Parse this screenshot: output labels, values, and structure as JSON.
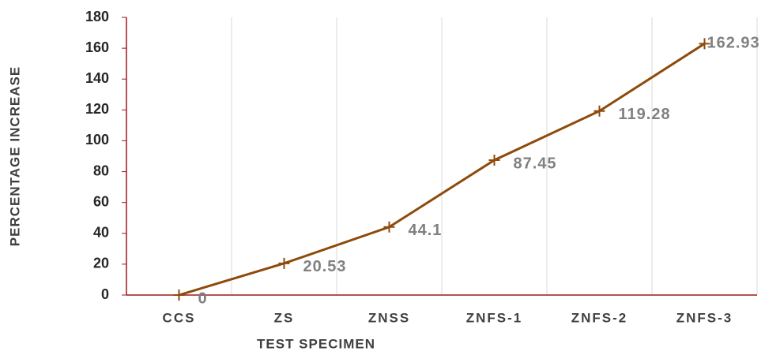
{
  "chart_data": {
    "type": "line",
    "x_label": "TEST SPECIMEN",
    "y_label": "PERCENTAGE INCREASE",
    "categories": [
      "CCS",
      "ZS",
      "ZNSS",
      "ZNFS-1",
      "ZNFS-2",
      "ZNFS-3"
    ],
    "series": [
      {
        "name": "Percentage increase",
        "color": "#8e4a0a",
        "values": [
          0,
          20.53,
          44.1,
          87.45,
          119.28,
          162.93
        ]
      }
    ],
    "ylim": [
      0,
      180
    ],
    "yticks": [
      0,
      20,
      40,
      60,
      80,
      100,
      120,
      140,
      160,
      180
    ],
    "grid": true
  }
}
